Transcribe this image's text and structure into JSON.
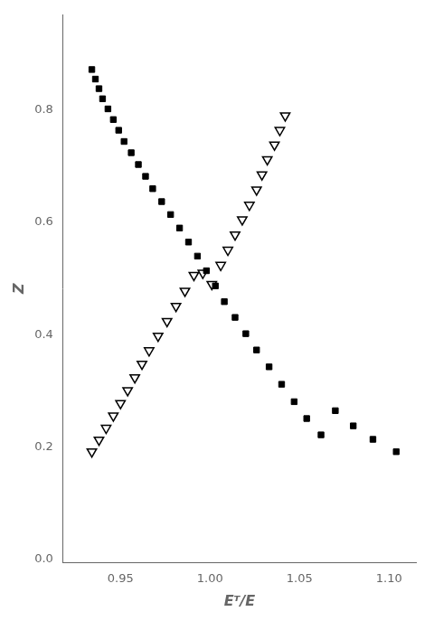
{
  "chart_data": {
    "type": "scatter",
    "x_label": "Eᵀ/E",
    "y_label": "Z",
    "xlim": [
      0.918,
      1.115
    ],
    "ylim": [
      -0.005,
      0.97
    ],
    "xticks": [
      0.95,
      {
        "value": 1.0,
        "label": "1.00"
      },
      1.05,
      {
        "value": 1.1,
        "label": "1.10"
      }
    ],
    "yticks": [
      {
        "value": 0.0,
        "label": "0.0"
      },
      0.2,
      0.4,
      0.6,
      0.8
    ],
    "grid": false,
    "series": [
      {
        "color": "#000000",
        "marker": "square",
        "x": [
          0.934,
          0.936,
          0.938,
          0.94,
          0.943,
          0.946,
          0.949,
          0.952,
          0.956,
          0.96,
          0.964,
          0.968,
          0.973,
          0.978,
          0.983,
          0.988,
          0.993,
          0.998,
          1.003,
          1.008,
          1.014,
          1.02,
          1.026,
          1.033,
          1.04,
          1.047,
          1.054,
          1.062,
          1.07,
          1.08,
          1.091,
          1.104
        ],
        "values": [
          0.872,
          0.855,
          0.838,
          0.82,
          0.802,
          0.783,
          0.764,
          0.744,
          0.724,
          0.703,
          0.682,
          0.66,
          0.637,
          0.614,
          0.59,
          0.565,
          0.54,
          0.514,
          0.487,
          0.459,
          0.431,
          0.402,
          0.373,
          0.343,
          0.312,
          0.281,
          0.251,
          0.222,
          0.265,
          0.238,
          0.214,
          0.192
        ]
      },
      {
        "color": "#000000",
        "marker": "triangle_down_open",
        "x": [
          0.934,
          0.938,
          0.942,
          0.946,
          0.95,
          0.954,
          0.958,
          0.962,
          0.966,
          0.971,
          0.976,
          0.981,
          0.986,
          0.991,
          0.996,
          1.001,
          1.006,
          1.01,
          1.014,
          1.018,
          1.022,
          1.026,
          1.029,
          1.032,
          1.036,
          1.039,
          1.042
        ],
        "values": [
          0.192,
          0.213,
          0.234,
          0.256,
          0.278,
          0.301,
          0.324,
          0.348,
          0.372,
          0.398,
          0.424,
          0.451,
          0.478,
          0.506,
          0.51,
          0.49,
          0.524,
          0.551,
          0.578,
          0.605,
          0.631,
          0.658,
          0.685,
          0.712,
          0.738,
          0.764,
          0.79
        ]
      }
    ]
  }
}
